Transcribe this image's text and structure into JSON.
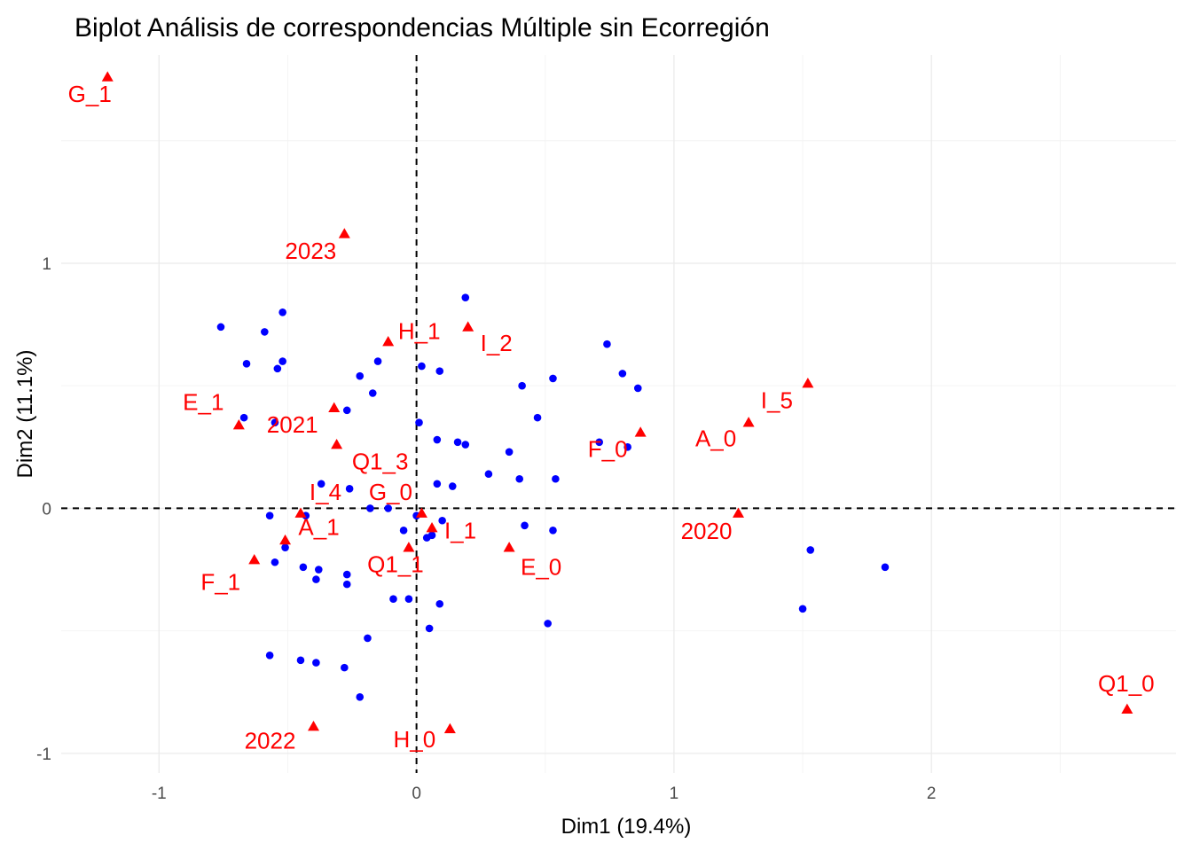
{
  "chart_data": {
    "type": "scatter",
    "title": "Biplot Análisis de correspondencias Múltiple sin Ecorregión",
    "xlabel": "Dim1 (19.4%)",
    "ylabel": "Dim2 (11.1%)",
    "xlim": [
      -1.38,
      2.95
    ],
    "ylim": [
      -1.08,
      1.85
    ],
    "xticks": [
      -1,
      0,
      1,
      2
    ],
    "yticks": [
      -1,
      0,
      1
    ],
    "xtick_labels": [
      "-1",
      "0",
      "1",
      "2"
    ],
    "ytick_labels": [
      "-1",
      "0",
      "1"
    ],
    "grid": true,
    "reference_lines": {
      "x": 0,
      "y": 0,
      "style": "dashed"
    },
    "series": [
      {
        "kind": "individuals",
        "marker": "circle",
        "color": "#0000ff",
        "points": [
          [
            0.19,
            0.86
          ],
          [
            -0.52,
            0.8
          ],
          [
            -0.76,
            0.74
          ],
          [
            -0.59,
            0.72
          ],
          [
            0.74,
            0.67
          ],
          [
            -0.52,
            0.6
          ],
          [
            -0.66,
            0.59
          ],
          [
            -0.15,
            0.6
          ],
          [
            0.02,
            0.58
          ],
          [
            -0.54,
            0.57
          ],
          [
            0.09,
            0.56
          ],
          [
            0.8,
            0.55
          ],
          [
            -0.22,
            0.54
          ],
          [
            0.53,
            0.53
          ],
          [
            0.41,
            0.5
          ],
          [
            0.86,
            0.49
          ],
          [
            -0.17,
            0.47
          ],
          [
            -0.27,
            0.4
          ],
          [
            0.47,
            0.37
          ],
          [
            -0.67,
            0.37
          ],
          [
            0.01,
            0.35
          ],
          [
            -0.55,
            0.35
          ],
          [
            0.08,
            0.28
          ],
          [
            0.16,
            0.27
          ],
          [
            0.19,
            0.26
          ],
          [
            0.71,
            0.27
          ],
          [
            0.82,
            0.25
          ],
          [
            0.36,
            0.23
          ],
          [
            0.28,
            0.14
          ],
          [
            0.4,
            0.12
          ],
          [
            0.54,
            0.12
          ],
          [
            -0.37,
            0.1
          ],
          [
            0.08,
            0.1
          ],
          [
            0.14,
            0.09
          ],
          [
            -0.26,
            0.08
          ],
          [
            -0.18,
            0.0
          ],
          [
            -0.11,
            0.0
          ],
          [
            -0.57,
            -0.03
          ],
          [
            -0.43,
            -0.03
          ],
          [
            0.0,
            -0.03
          ],
          [
            0.1,
            -0.05
          ],
          [
            0.42,
            -0.07
          ],
          [
            -0.05,
            -0.09
          ],
          [
            0.53,
            -0.09
          ],
          [
            0.06,
            -0.11
          ],
          [
            0.04,
            -0.12
          ],
          [
            -0.51,
            -0.16
          ],
          [
            1.53,
            -0.17
          ],
          [
            -0.55,
            -0.22
          ],
          [
            1.82,
            -0.24
          ],
          [
            -0.44,
            -0.24
          ],
          [
            -0.38,
            -0.25
          ],
          [
            -0.27,
            -0.27
          ],
          [
            -0.39,
            -0.29
          ],
          [
            -0.27,
            -0.31
          ],
          [
            -0.09,
            -0.37
          ],
          [
            -0.03,
            -0.37
          ],
          [
            0.09,
            -0.39
          ],
          [
            1.5,
            -0.41
          ],
          [
            0.51,
            -0.47
          ],
          [
            0.05,
            -0.49
          ],
          [
            -0.19,
            -0.53
          ],
          [
            -0.57,
            -0.6
          ],
          [
            -0.45,
            -0.62
          ],
          [
            -0.39,
            -0.63
          ],
          [
            -0.28,
            -0.65
          ],
          [
            -0.22,
            -0.77
          ]
        ]
      },
      {
        "kind": "categories",
        "marker": "triangle",
        "color": "#ff0000",
        "points": [
          {
            "label": "G_1",
            "x": -1.2,
            "y": 1.76
          },
          {
            "label": "2023",
            "x": -0.28,
            "y": 1.12
          },
          {
            "label": "H_1",
            "x": -0.11,
            "y": 0.68
          },
          {
            "label": "I_2",
            "x": 0.2,
            "y": 0.74
          },
          {
            "label": "I_5",
            "x": 1.52,
            "y": 0.51
          },
          {
            "label": "E_1",
            "x": -0.69,
            "y": 0.34
          },
          {
            "label": "2021",
            "x": -0.32,
            "y": 0.41
          },
          {
            "label": "Q1_3",
            "x": -0.31,
            "y": 0.26
          },
          {
            "label": "A_0",
            "x": 1.29,
            "y": 0.35
          },
          {
            "label": "F_0",
            "x": 0.87,
            "y": 0.31
          },
          {
            "label": "I_4",
            "x": -0.45,
            "y": -0.02
          },
          {
            "label": "G_0",
            "x": 0.02,
            "y": -0.02
          },
          {
            "label": "2020",
            "x": 1.25,
            "y": -0.02
          },
          {
            "label": "A_1",
            "x": -0.51,
            "y": -0.13
          },
          {
            "label": "I_1",
            "x": 0.06,
            "y": -0.08
          },
          {
            "label": "Q1_1",
            "x": -0.03,
            "y": -0.16
          },
          {
            "label": "E_0",
            "x": 0.36,
            "y": -0.16
          },
          {
            "label": "F_1",
            "x": -0.63,
            "y": -0.21
          },
          {
            "label": "2022",
            "x": -0.4,
            "y": -0.89
          },
          {
            "label": "H_0",
            "x": 0.13,
            "y": -0.9
          },
          {
            "label": "Q1_0",
            "x": 2.76,
            "y": -0.82
          }
        ]
      }
    ]
  }
}
